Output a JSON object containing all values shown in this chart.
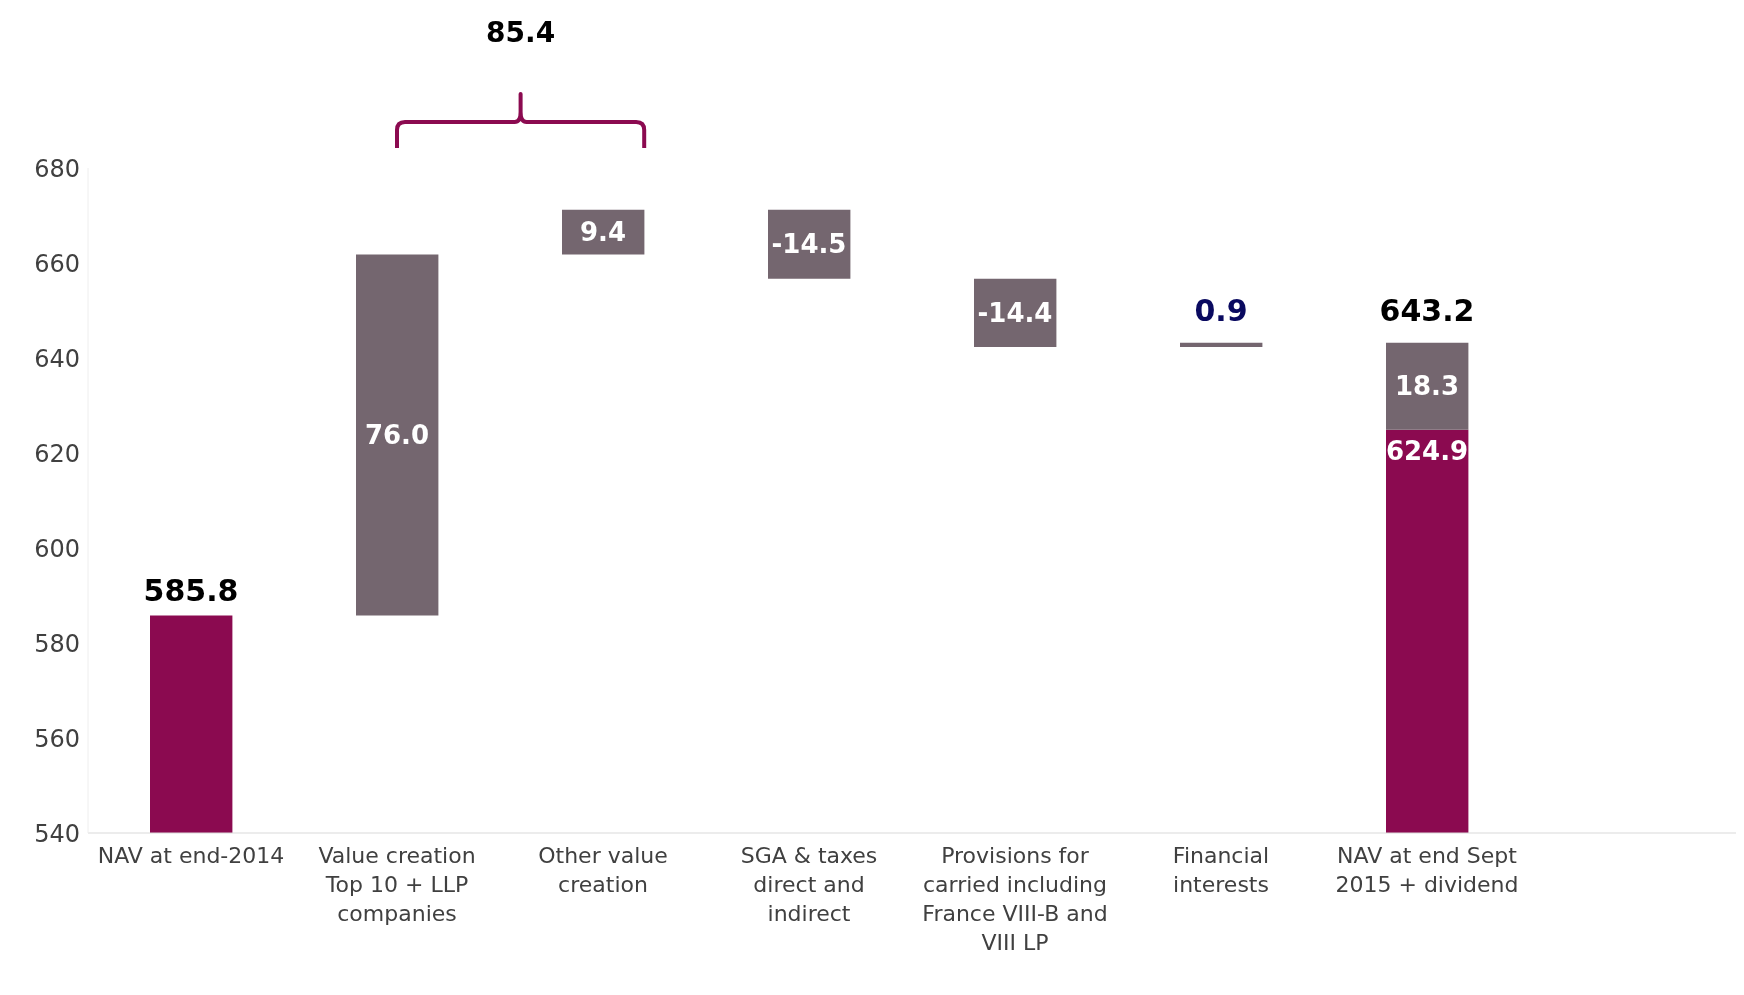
{
  "chart_data": {
    "type": "bar",
    "categories": [
      "NAV at end-2014",
      "Value creation Top 10 + LLP companies",
      "Other value creation",
      "SGA & taxes direct and indirect",
      "Provisions for carried including France VIII-B and VIII LP",
      "Financial interests",
      "NAV at end Sept 2015 + dividend",
      null
    ],
    "stacked": true,
    "series": [
      {
        "color": "#8b0a50",
        "values": [
          585.8,
          null,
          null,
          null,
          null,
          null,
          624.9,
          null
        ],
        "value_labels": [
          "585.8",
          null,
          null,
          null,
          null,
          null,
          "624.9",
          null
        ]
      },
      {
        "color": "#74666f",
        "values": [
          null,
          76.0,
          9.4,
          -14.5,
          -14.4,
          0.9,
          18.3,
          null
        ],
        "base": [
          null,
          585.8,
          661.8,
          671.2,
          656.7,
          642.3,
          null,
          null
        ],
        "value_labels": [
          null,
          "76.0",
          "9.4",
          "-14.5",
          "-14.4",
          "0.9",
          "18.3",
          null
        ]
      }
    ],
    "totals": [
      null,
      null,
      null,
      null,
      null,
      null,
      "643.2",
      null
    ],
    "annotations": [
      "85.4"
    ],
    "ylim": [
      540,
      680
    ],
    "yticks": [
      540,
      560,
      580,
      600,
      620,
      640,
      660,
      680
    ],
    "grid": false
  }
}
